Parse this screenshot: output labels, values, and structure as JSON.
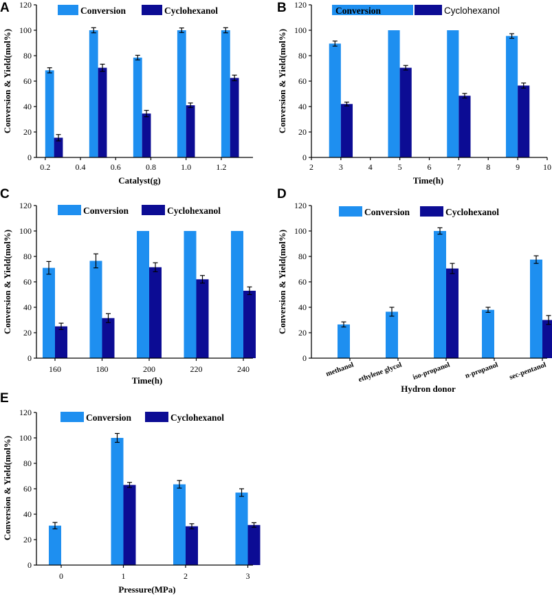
{
  "colors": {
    "conversion": "#1e8ff0",
    "cyclohexanol": "#0c0c94",
    "axis": "#000000"
  },
  "chart_data": [
    {
      "panel": "A",
      "type": "bar",
      "xlabel": "Catalyst(g)",
      "ylabel": "Conversion & Yield(mol%)",
      "ylim": [
        0,
        120
      ],
      "yticks": [
        0,
        20,
        40,
        60,
        80,
        100,
        120
      ],
      "xlim": [
        0.15,
        1.38
      ],
      "xticks": [
        "0.2",
        "0.4",
        "0.6",
        "0.8",
        "1.0",
        "1.2"
      ],
      "categories": [
        "0.25",
        "0.5",
        "0.75",
        "1.0",
        "1.25"
      ],
      "x_positions": [
        0.25,
        0.5,
        0.75,
        1.0,
        1.25
      ],
      "series": [
        {
          "name": "Conversion",
          "values": [
            68.5,
            100,
            78.5,
            100,
            100
          ],
          "errors": [
            2,
            2,
            1.8,
            1.8,
            2
          ]
        },
        {
          "name": "Cyclohexanol",
          "values": [
            15.5,
            70.5,
            34.5,
            41,
            62.5
          ],
          "errors": [
            2.5,
            2.8,
            2.5,
            1.8,
            2.2
          ]
        }
      ],
      "legend": {
        "labels": [
          "Conversion",
          "Cyclohexanol"
        ],
        "position": "top"
      }
    },
    {
      "panel": "B",
      "type": "bar",
      "xlabel": "Time(h)",
      "ylabel": "Conversion & Yield(mol%)",
      "ylim": [
        0,
        120
      ],
      "yticks": [
        0,
        20,
        40,
        60,
        80,
        100,
        120
      ],
      "xlim": [
        2,
        10
      ],
      "xticks": [
        "2",
        "3",
        "4",
        "5",
        "6",
        "7",
        "8",
        "9",
        "10"
      ],
      "categories": [
        "3",
        "5",
        "7",
        "9"
      ],
      "x_positions": [
        3,
        5,
        7,
        9
      ],
      "series": [
        {
          "name": "Conversion",
          "values": [
            89.5,
            100,
            100,
            95.5
          ],
          "errors": [
            2,
            0,
            0,
            1.8
          ]
        },
        {
          "name": "Cyclohexanol",
          "values": [
            42,
            70.5,
            48.5,
            56.5
          ],
          "errors": [
            1.5,
            1.8,
            1.8,
            2
          ]
        }
      ],
      "legend": {
        "labels": [
          "Conversion",
          "Cyclohexanol"
        ],
        "position": "top"
      }
    },
    {
      "panel": "C",
      "type": "bar",
      "xlabel": "Time(h)",
      "ylabel": "Conversion & Yield(mol%)",
      "ylim": [
        0,
        120
      ],
      "yticks": [
        0,
        20,
        40,
        60,
        80,
        100,
        120
      ],
      "xlim": [
        148,
        254
      ],
      "xticks": [
        "160",
        "180",
        "200",
        "220",
        "240"
      ],
      "categories": [
        "160",
        "180",
        "200",
        "220",
        "240"
      ],
      "x_positions": [
        160,
        180,
        200,
        220,
        240
      ],
      "series": [
        {
          "name": "Conversion",
          "values": [
            71,
            76.5,
            100,
            100,
            100
          ],
          "errors": [
            5,
            5.5,
            0,
            0,
            0
          ]
        },
        {
          "name": "Cyclohexanol",
          "values": [
            25,
            31.5,
            71.5,
            62,
            53
          ],
          "errors": [
            2.5,
            3.5,
            3.5,
            3,
            3
          ]
        }
      ],
      "legend": {
        "labels": [
          "Conversion",
          "Cyclohexanol"
        ],
        "position": "top"
      }
    },
    {
      "panel": "D",
      "type": "bar",
      "xlabel": "Hydron donor",
      "ylabel": "Conversion & Yield(mol%)",
      "ylim": [
        0,
        120
      ],
      "yticks": [
        0,
        20,
        40,
        60,
        80,
        100,
        120
      ],
      "categories": [
        "methanol",
        "ethylene glycol",
        "iso-propanol",
        "n-propanol",
        "sec-pentanol"
      ],
      "series": [
        {
          "name": "Conversion",
          "values": [
            26.5,
            36.5,
            100,
            38,
            77.5
          ],
          "errors": [
            2,
            3.5,
            2.5,
            2,
            3
          ]
        },
        {
          "name": "Cyclohexanol",
          "values": [
            null,
            null,
            70.5,
            null,
            30
          ],
          "errors": [
            null,
            null,
            4,
            null,
            3.5
          ]
        }
      ],
      "legend": {
        "labels": [
          "Conversion",
          "Cyclohexanol"
        ],
        "position": "top"
      }
    },
    {
      "panel": "E",
      "type": "bar",
      "xlabel": "Pressure(MPa)",
      "ylabel": "Conversion & Yield(mol%)",
      "ylim": [
        0,
        120
      ],
      "yticks": [
        0,
        20,
        40,
        60,
        80,
        100,
        120
      ],
      "categories": [
        "0",
        "1",
        "2",
        "3"
      ],
      "series": [
        {
          "name": "Conversion",
          "values": [
            31,
            100,
            63.5,
            57
          ],
          "errors": [
            2.5,
            3.5,
            3,
            3
          ]
        },
        {
          "name": "Cyclohexanol",
          "values": [
            null,
            63,
            30.5,
            31.5
          ],
          "errors": [
            null,
            2,
            2,
            1.8
          ]
        }
      ],
      "legend": {
        "labels": [
          "Conversion",
          "Cyclohexanol"
        ],
        "position": "top"
      }
    }
  ]
}
